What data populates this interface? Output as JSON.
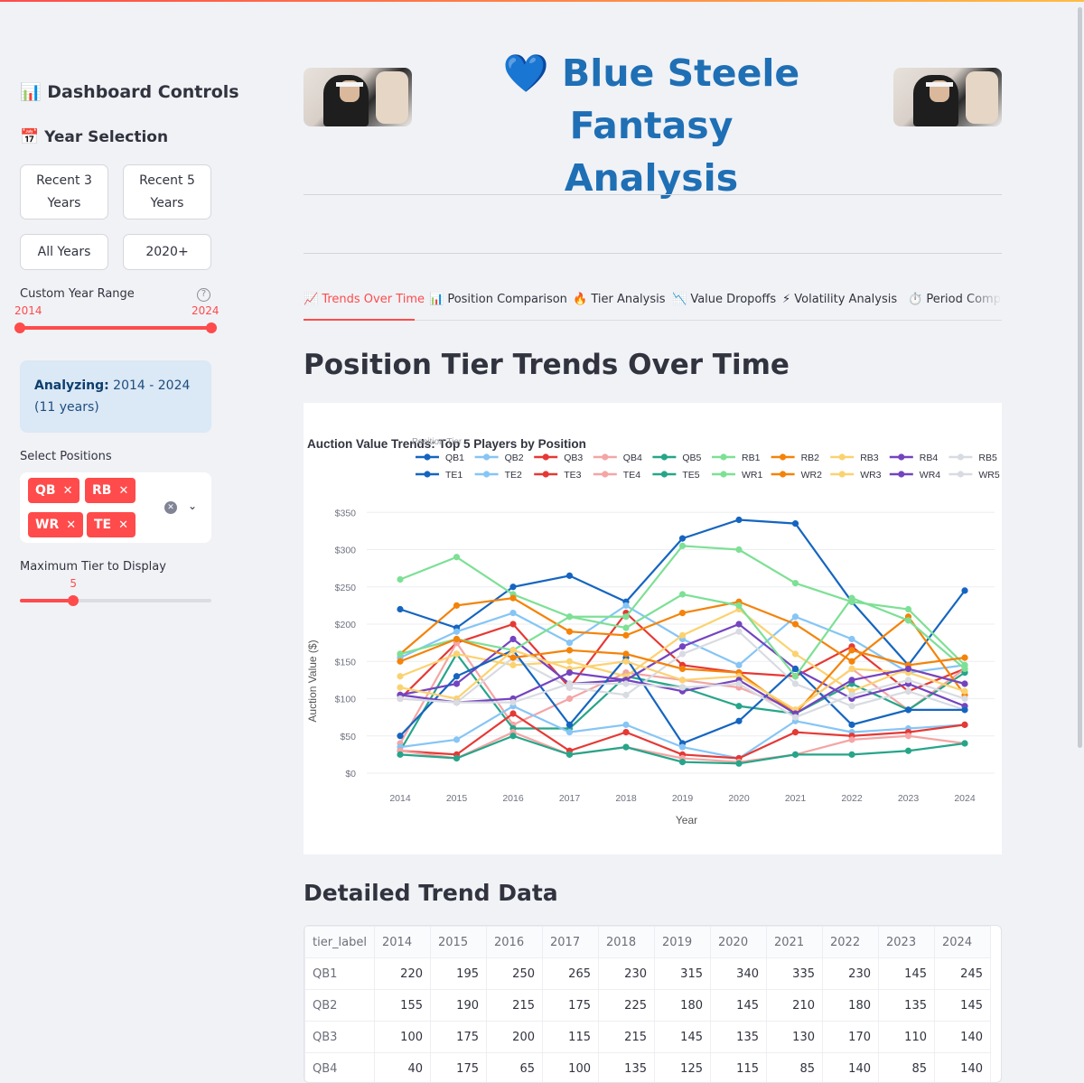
{
  "sidebar": {
    "title": "📊 Dashboard Controls",
    "year_section": "📅 Year Selection",
    "buttons": {
      "recent3_l1": "Recent 3",
      "recent3_l2": "Years",
      "recent5_l1": "Recent 5",
      "recent5_l2": "Years",
      "all": "All Years",
      "since2020": "2020+"
    },
    "custom_range_label": "Custom Year Range",
    "range_min": "2014",
    "range_max": "2024",
    "analyzing_label": "Analyzing:",
    "analyzing_value": "2014 - 2024 (11 years)",
    "positions_label": "Select Positions",
    "positions": [
      "QB",
      "RB",
      "WR",
      "TE"
    ],
    "max_tier_label": "Maximum Tier to Display",
    "max_tier_value": "5",
    "max_tier_fraction": 0.28
  },
  "header": {
    "title_line1": "💙 Blue Steele Fantasy",
    "title_line2": "Analysis"
  },
  "tabs": [
    {
      "icon": "📈",
      "label": "Trends Over Time"
    },
    {
      "icon": "📊",
      "label": "Position Comparison"
    },
    {
      "icon": "🔥",
      "label": "Tier Analysis"
    },
    {
      "icon": "📉",
      "label": "Value Dropoffs"
    },
    {
      "icon": "⚡",
      "label": "Volatility Analysis"
    },
    {
      "icon": "⏱️",
      "label": "Period Compa"
    }
  ],
  "main": {
    "section_title": "Position Tier Trends Over Time",
    "table_title": "Detailed Trend Data"
  },
  "chart_data": {
    "type": "line",
    "title": "Auction Value Trends: Top 5 Players by Position",
    "legend_title": "Position,Tier",
    "xlabel": "Year",
    "ylabel": "Auction Value ($)",
    "ylim": [
      0,
      360
    ],
    "yticks": [
      "$0",
      "$50",
      "$100",
      "$150",
      "$200",
      "$250",
      "$300",
      "$350"
    ],
    "ytick_values": [
      0,
      50,
      100,
      150,
      200,
      250,
      300,
      350
    ],
    "x": [
      2014,
      2015,
      2016,
      2017,
      2018,
      2019,
      2020,
      2021,
      2022,
      2023,
      2024
    ],
    "legend_placement": "top",
    "grid": true,
    "series": [
      {
        "name": "QB1",
        "color": "#1565c0",
        "values": [
          220,
          195,
          250,
          265,
          230,
          315,
          340,
          335,
          230,
          145,
          245
        ]
      },
      {
        "name": "QB2",
        "color": "#86c5f5",
        "values": [
          155,
          190,
          215,
          175,
          225,
          180,
          145,
          210,
          180,
          135,
          145
        ]
      },
      {
        "name": "QB3",
        "color": "#e53935",
        "values": [
          100,
          175,
          200,
          115,
          215,
          145,
          135,
          130,
          170,
          110,
          140
        ]
      },
      {
        "name": "QB4",
        "color": "#f4a5a5",
        "values": [
          40,
          175,
          65,
          100,
          135,
          125,
          115,
          85,
          140,
          85,
          140
        ]
      },
      {
        "name": "QB5",
        "color": "#26a589",
        "values": [
          30,
          160,
          60,
          60,
          130,
          115,
          90,
          80,
          120,
          85,
          135
        ]
      },
      {
        "name": "RB1",
        "color": "#7de095",
        "values": [
          260,
          290,
          240,
          210,
          210,
          305,
          300,
          255,
          230,
          220,
          145
        ]
      },
      {
        "name": "RB2",
        "color": "#f4830a",
        "values": [
          160,
          225,
          235,
          190,
          185,
          215,
          230,
          200,
          150,
          210,
          105
        ]
      },
      {
        "name": "RB3",
        "color": "#fbd271",
        "values": [
          130,
          160,
          145,
          150,
          130,
          185,
          220,
          160,
          110,
          140,
          120
        ]
      },
      {
        "name": "RB4",
        "color": "#7444c0",
        "values": [
          105,
          120,
          180,
          120,
          125,
          170,
          200,
          140,
          100,
          120,
          90
        ]
      },
      {
        "name": "RB5",
        "color": "#d8dbe1",
        "values": [
          100,
          95,
          155,
          115,
          105,
          160,
          190,
          120,
          90,
          110,
          85
        ]
      },
      {
        "name": "TE1",
        "color": "#1565c0",
        "values": [
          50,
          130,
          165,
          65,
          155,
          40,
          70,
          140,
          65,
          85,
          85
        ]
      },
      {
        "name": "TE2",
        "color": "#86c5f5",
        "values": [
          35,
          45,
          90,
          55,
          65,
          35,
          20,
          70,
          55,
          60,
          65
        ]
      },
      {
        "name": "TE3",
        "color": "#e53935",
        "values": [
          30,
          25,
          80,
          30,
          55,
          25,
          20,
          55,
          50,
          55,
          65
        ]
      },
      {
        "name": "TE4",
        "color": "#f4a5a5",
        "values": [
          30,
          20,
          55,
          25,
          35,
          20,
          15,
          25,
          45,
          50,
          40
        ]
      },
      {
        "name": "TE5",
        "color": "#26a589",
        "values": [
          25,
          20,
          50,
          25,
          35,
          15,
          13,
          25,
          25,
          30,
          40
        ]
      },
      {
        "name": "WR1",
        "color": "#7de095",
        "values": [
          160,
          180,
          165,
          210,
          195,
          240,
          225,
          130,
          235,
          205,
          140
        ]
      },
      {
        "name": "WR2",
        "color": "#f4830a",
        "values": [
          150,
          180,
          155,
          165,
          160,
          140,
          135,
          80,
          165,
          145,
          155
        ]
      },
      {
        "name": "WR3",
        "color": "#fbd271",
        "values": [
          115,
          100,
          165,
          140,
          150,
          125,
          130,
          85,
          140,
          135,
          110
        ]
      },
      {
        "name": "WR4",
        "color": "#7444c0",
        "values": [
          105,
          95,
          100,
          135,
          125,
          110,
          125,
          80,
          125,
          140,
          120
        ]
      },
      {
        "name": "WR5",
        "color": "#d8dbe1",
        "values": [
          100,
          95,
          95,
          120,
          120,
          115,
          120,
          75,
          105,
          125,
          100
        ]
      }
    ]
  },
  "table": {
    "columns": [
      "tier_label",
      "2014",
      "2015",
      "2016",
      "2017",
      "2018",
      "2019",
      "2020",
      "2021",
      "2022",
      "2023",
      "2024"
    ],
    "rows": [
      [
        "QB1",
        "220",
        "195",
        "250",
        "265",
        "230",
        "315",
        "340",
        "335",
        "230",
        "145",
        "245"
      ],
      [
        "QB2",
        "155",
        "190",
        "215",
        "175",
        "225",
        "180",
        "145",
        "210",
        "180",
        "135",
        "145"
      ],
      [
        "QB3",
        "100",
        "175",
        "200",
        "115",
        "215",
        "145",
        "135",
        "130",
        "170",
        "110",
        "140"
      ],
      [
        "QB4",
        "40",
        "175",
        "65",
        "100",
        "135",
        "125",
        "115",
        "85",
        "140",
        "85",
        "140"
      ]
    ]
  }
}
